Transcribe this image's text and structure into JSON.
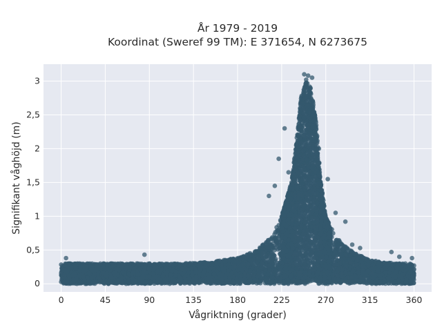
{
  "title_line1": "År 1979 - 2019",
  "title_line2": "Koordinat (Sweref 99 TM): E 371654, N 6273675",
  "chart_data": {
    "type": "scatter",
    "title": "År 1979 - 2019",
    "subtitle": "Koordinat (Sweref 99 TM): E 371654, N 6273675",
    "xlabel": "Vågriktning (grader)",
    "ylabel": "Signifikant våghöjd (m)",
    "xlim": [
      -18,
      378
    ],
    "ylim": [
      -0.12,
      3.25
    ],
    "grid": true,
    "x_ticks": [
      0,
      45,
      90,
      135,
      180,
      225,
      270,
      315,
      360
    ],
    "x_tick_labels": [
      "0",
      "45",
      "90",
      "135",
      "180",
      "225",
      "270",
      "315",
      "360"
    ],
    "y_ticks": [
      0,
      0.5,
      1,
      1.5,
      2,
      2.5,
      3
    ],
    "y_tick_labels": [
      "0",
      "0,5",
      "1",
      "1,5",
      "2",
      "2,5",
      "3"
    ],
    "point_color": "#34586e",
    "plot_background": "#e6e9f1",
    "envelope": {
      "direction": [
        0,
        20,
        45,
        90,
        120,
        150,
        180,
        200,
        215,
        225,
        235,
        240,
        245,
        250,
        255,
        260,
        265,
        270,
        280,
        290,
        300,
        315,
        340,
        360
      ],
      "typical_max_height": [
        0.3,
        0.3,
        0.3,
        0.3,
        0.3,
        0.32,
        0.38,
        0.5,
        0.7,
        1.0,
        1.5,
        2.1,
        2.8,
        3.0,
        2.9,
        2.4,
        1.5,
        1.0,
        0.7,
        0.55,
        0.45,
        0.35,
        0.3,
        0.3
      ]
    },
    "outliers": [
      {
        "x": 248,
        "y": 3.1
      },
      {
        "x": 252,
        "y": 3.08
      },
      {
        "x": 256,
        "y": 3.05
      },
      {
        "x": 250,
        "y": 3.02
      },
      {
        "x": 222,
        "y": 1.85
      },
      {
        "x": 228,
        "y": 2.3
      },
      {
        "x": 232,
        "y": 1.65
      },
      {
        "x": 263,
        "y": 2.0
      },
      {
        "x": 272,
        "y": 1.55
      },
      {
        "x": 280,
        "y": 1.05
      },
      {
        "x": 290,
        "y": 0.92
      },
      {
        "x": 297,
        "y": 0.58
      },
      {
        "x": 305,
        "y": 0.53
      },
      {
        "x": 337,
        "y": 0.47
      },
      {
        "x": 345,
        "y": 0.4
      },
      {
        "x": 358,
        "y": 0.38
      },
      {
        "x": 5,
        "y": 0.38
      },
      {
        "x": 85,
        "y": 0.43
      },
      {
        "x": 212,
        "y": 1.3
      },
      {
        "x": 218,
        "y": 1.45
      }
    ]
  }
}
